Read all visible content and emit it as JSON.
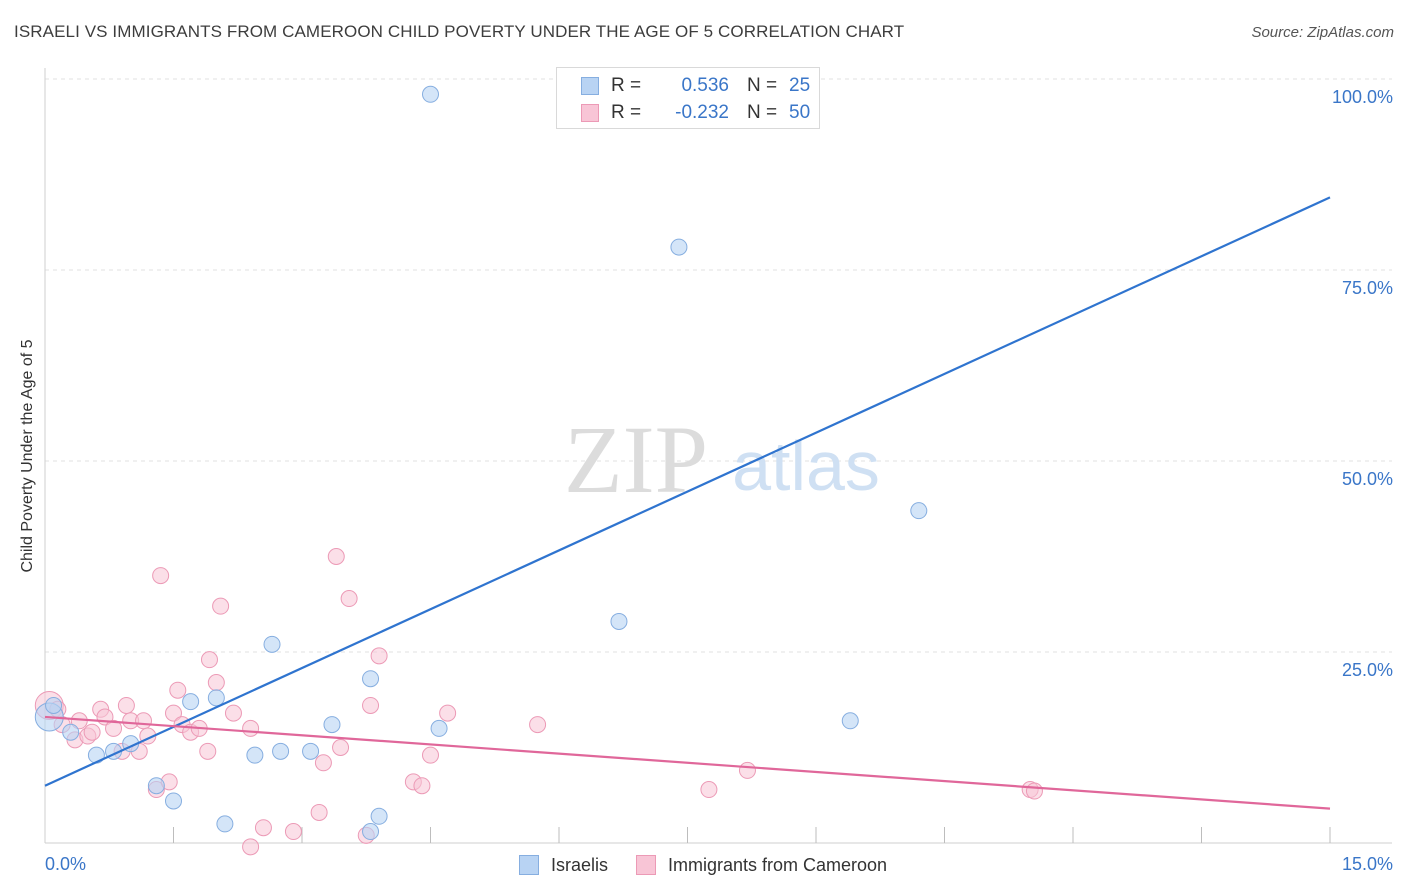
{
  "title": "ISRAELI VS IMMIGRANTS FROM CAMEROON CHILD POVERTY UNDER THE AGE OF 5 CORRELATION CHART",
  "source": "Source: ZipAtlas.com",
  "watermark": {
    "zip": "ZIP",
    "atlas": "atlas"
  },
  "stats": {
    "r_label": "R =",
    "n_label": "N =",
    "rows": [
      {
        "r": "0.536",
        "n": "25"
      },
      {
        "r": "-0.232",
        "n": "50"
      }
    ]
  },
  "colors": {
    "israelis_fill": "#b8d3f3",
    "israelis_stroke": "#86aee0",
    "israelis_line": "#2f74cf",
    "cameroon_fill": "#f8c5d6",
    "cameroon_stroke": "#ec9ab6",
    "cameroon_line": "#e0679a",
    "tick_label": "#3a76c8",
    "grid": "#e2e2e2"
  },
  "chart_data": {
    "type": "scatter",
    "title": "ISRAELI VS IMMIGRANTS FROM CAMEROON CHILD POVERTY UNDER THE AGE OF 5 CORRELATION CHART",
    "xlabel": "",
    "ylabel": "Child Poverty Under the Age of 5",
    "xlim": [
      0,
      15
    ],
    "ylim": [
      0,
      100
    ],
    "x_tick_labels": [
      "0.0%",
      "15.0%"
    ],
    "y_ticks": [
      25,
      50,
      75,
      100
    ],
    "y_tick_labels": [
      "25.0%",
      "50.0%",
      "75.0%",
      "100.0%"
    ],
    "grid": true,
    "legend_position": "bottom",
    "series": [
      {
        "name": "Israelis",
        "r": 0.536,
        "n": 25,
        "trend": {
          "x0": 0,
          "y0": 7.5,
          "x1": 15,
          "y1": 84.5
        },
        "points": [
          {
            "x": 0.05,
            "y": 16.5
          },
          {
            "x": 0.1,
            "y": 18.0
          },
          {
            "x": 0.3,
            "y": 14.5
          },
          {
            "x": 0.6,
            "y": 11.5
          },
          {
            "x": 0.8,
            "y": 12.0
          },
          {
            "x": 1.0,
            "y": 13.0
          },
          {
            "x": 1.3,
            "y": 7.5
          },
          {
            "x": 1.5,
            "y": 5.5
          },
          {
            "x": 1.7,
            "y": 18.5
          },
          {
            "x": 2.0,
            "y": 19.0
          },
          {
            "x": 2.1,
            "y": 2.5
          },
          {
            "x": 2.45,
            "y": 11.5
          },
          {
            "x": 2.65,
            "y": 26.0
          },
          {
            "x": 2.75,
            "y": 12.0
          },
          {
            "x": 3.1,
            "y": 12.0
          },
          {
            "x": 3.35,
            "y": 15.5
          },
          {
            "x": 3.8,
            "y": 21.5
          },
          {
            "x": 3.8,
            "y": 1.5
          },
          {
            "x": 3.9,
            "y": 3.5
          },
          {
            "x": 4.5,
            "y": 98.0
          },
          {
            "x": 4.6,
            "y": 15.0
          },
          {
            "x": 6.7,
            "y": 29.0
          },
          {
            "x": 7.4,
            "y": 78.0
          },
          {
            "x": 9.4,
            "y": 16.0
          },
          {
            "x": 10.2,
            "y": 43.5
          }
        ]
      },
      {
        "name": "Immigrants from Cameroon",
        "r": -0.232,
        "n": 50,
        "trend": {
          "x0": 0,
          "y0": 16.5,
          "x1": 15,
          "y1": 4.5
        },
        "points": [
          {
            "x": 0.05,
            "y": 18.0
          },
          {
            "x": 0.15,
            "y": 17.5
          },
          {
            "x": 0.2,
            "y": 15.5
          },
          {
            "x": 0.35,
            "y": 13.5
          },
          {
            "x": 0.4,
            "y": 16.0
          },
          {
            "x": 0.5,
            "y": 14.0
          },
          {
            "x": 0.55,
            "y": 14.5
          },
          {
            "x": 0.65,
            "y": 17.5
          },
          {
            "x": 0.7,
            "y": 16.5
          },
          {
            "x": 0.8,
            "y": 15.0
          },
          {
            "x": 0.9,
            "y": 12.0
          },
          {
            "x": 0.95,
            "y": 18.0
          },
          {
            "x": 1.0,
            "y": 16.0
          },
          {
            "x": 1.1,
            "y": 12.0
          },
          {
            "x": 1.15,
            "y": 16.0
          },
          {
            "x": 1.2,
            "y": 14.0
          },
          {
            "x": 1.3,
            "y": 7.0
          },
          {
            "x": 1.35,
            "y": 35.0
          },
          {
            "x": 1.45,
            "y": 8.0
          },
          {
            "x": 1.5,
            "y": 17.0
          },
          {
            "x": 1.55,
            "y": 20.0
          },
          {
            "x": 1.6,
            "y": 15.5
          },
          {
            "x": 1.7,
            "y": 14.5
          },
          {
            "x": 1.8,
            "y": 15.0
          },
          {
            "x": 1.9,
            "y": 12.0
          },
          {
            "x": 1.92,
            "y": 24.0
          },
          {
            "x": 2.0,
            "y": 21.0
          },
          {
            "x": 2.05,
            "y": 31.0
          },
          {
            "x": 2.2,
            "y": 17.0
          },
          {
            "x": 2.4,
            "y": 15.0
          },
          {
            "x": 2.4,
            "y": -0.5
          },
          {
            "x": 2.55,
            "y": 2.0
          },
          {
            "x": 2.9,
            "y": 1.5
          },
          {
            "x": 3.2,
            "y": 4.0
          },
          {
            "x": 3.25,
            "y": 10.5
          },
          {
            "x": 3.4,
            "y": 37.5
          },
          {
            "x": 3.45,
            "y": 12.5
          },
          {
            "x": 3.55,
            "y": 32.0
          },
          {
            "x": 3.75,
            "y": 1.0
          },
          {
            "x": 3.8,
            "y": 18.0
          },
          {
            "x": 3.9,
            "y": 24.5
          },
          {
            "x": 4.3,
            "y": 8.0
          },
          {
            "x": 4.4,
            "y": 7.5
          },
          {
            "x": 4.5,
            "y": 11.5
          },
          {
            "x": 4.7,
            "y": 17.0
          },
          {
            "x": 5.75,
            "y": 15.5
          },
          {
            "x": 7.75,
            "y": 7.0
          },
          {
            "x": 8.2,
            "y": 9.5
          },
          {
            "x": 11.5,
            "y": 7.0
          },
          {
            "x": 11.55,
            "y": 6.8
          }
        ]
      }
    ]
  }
}
